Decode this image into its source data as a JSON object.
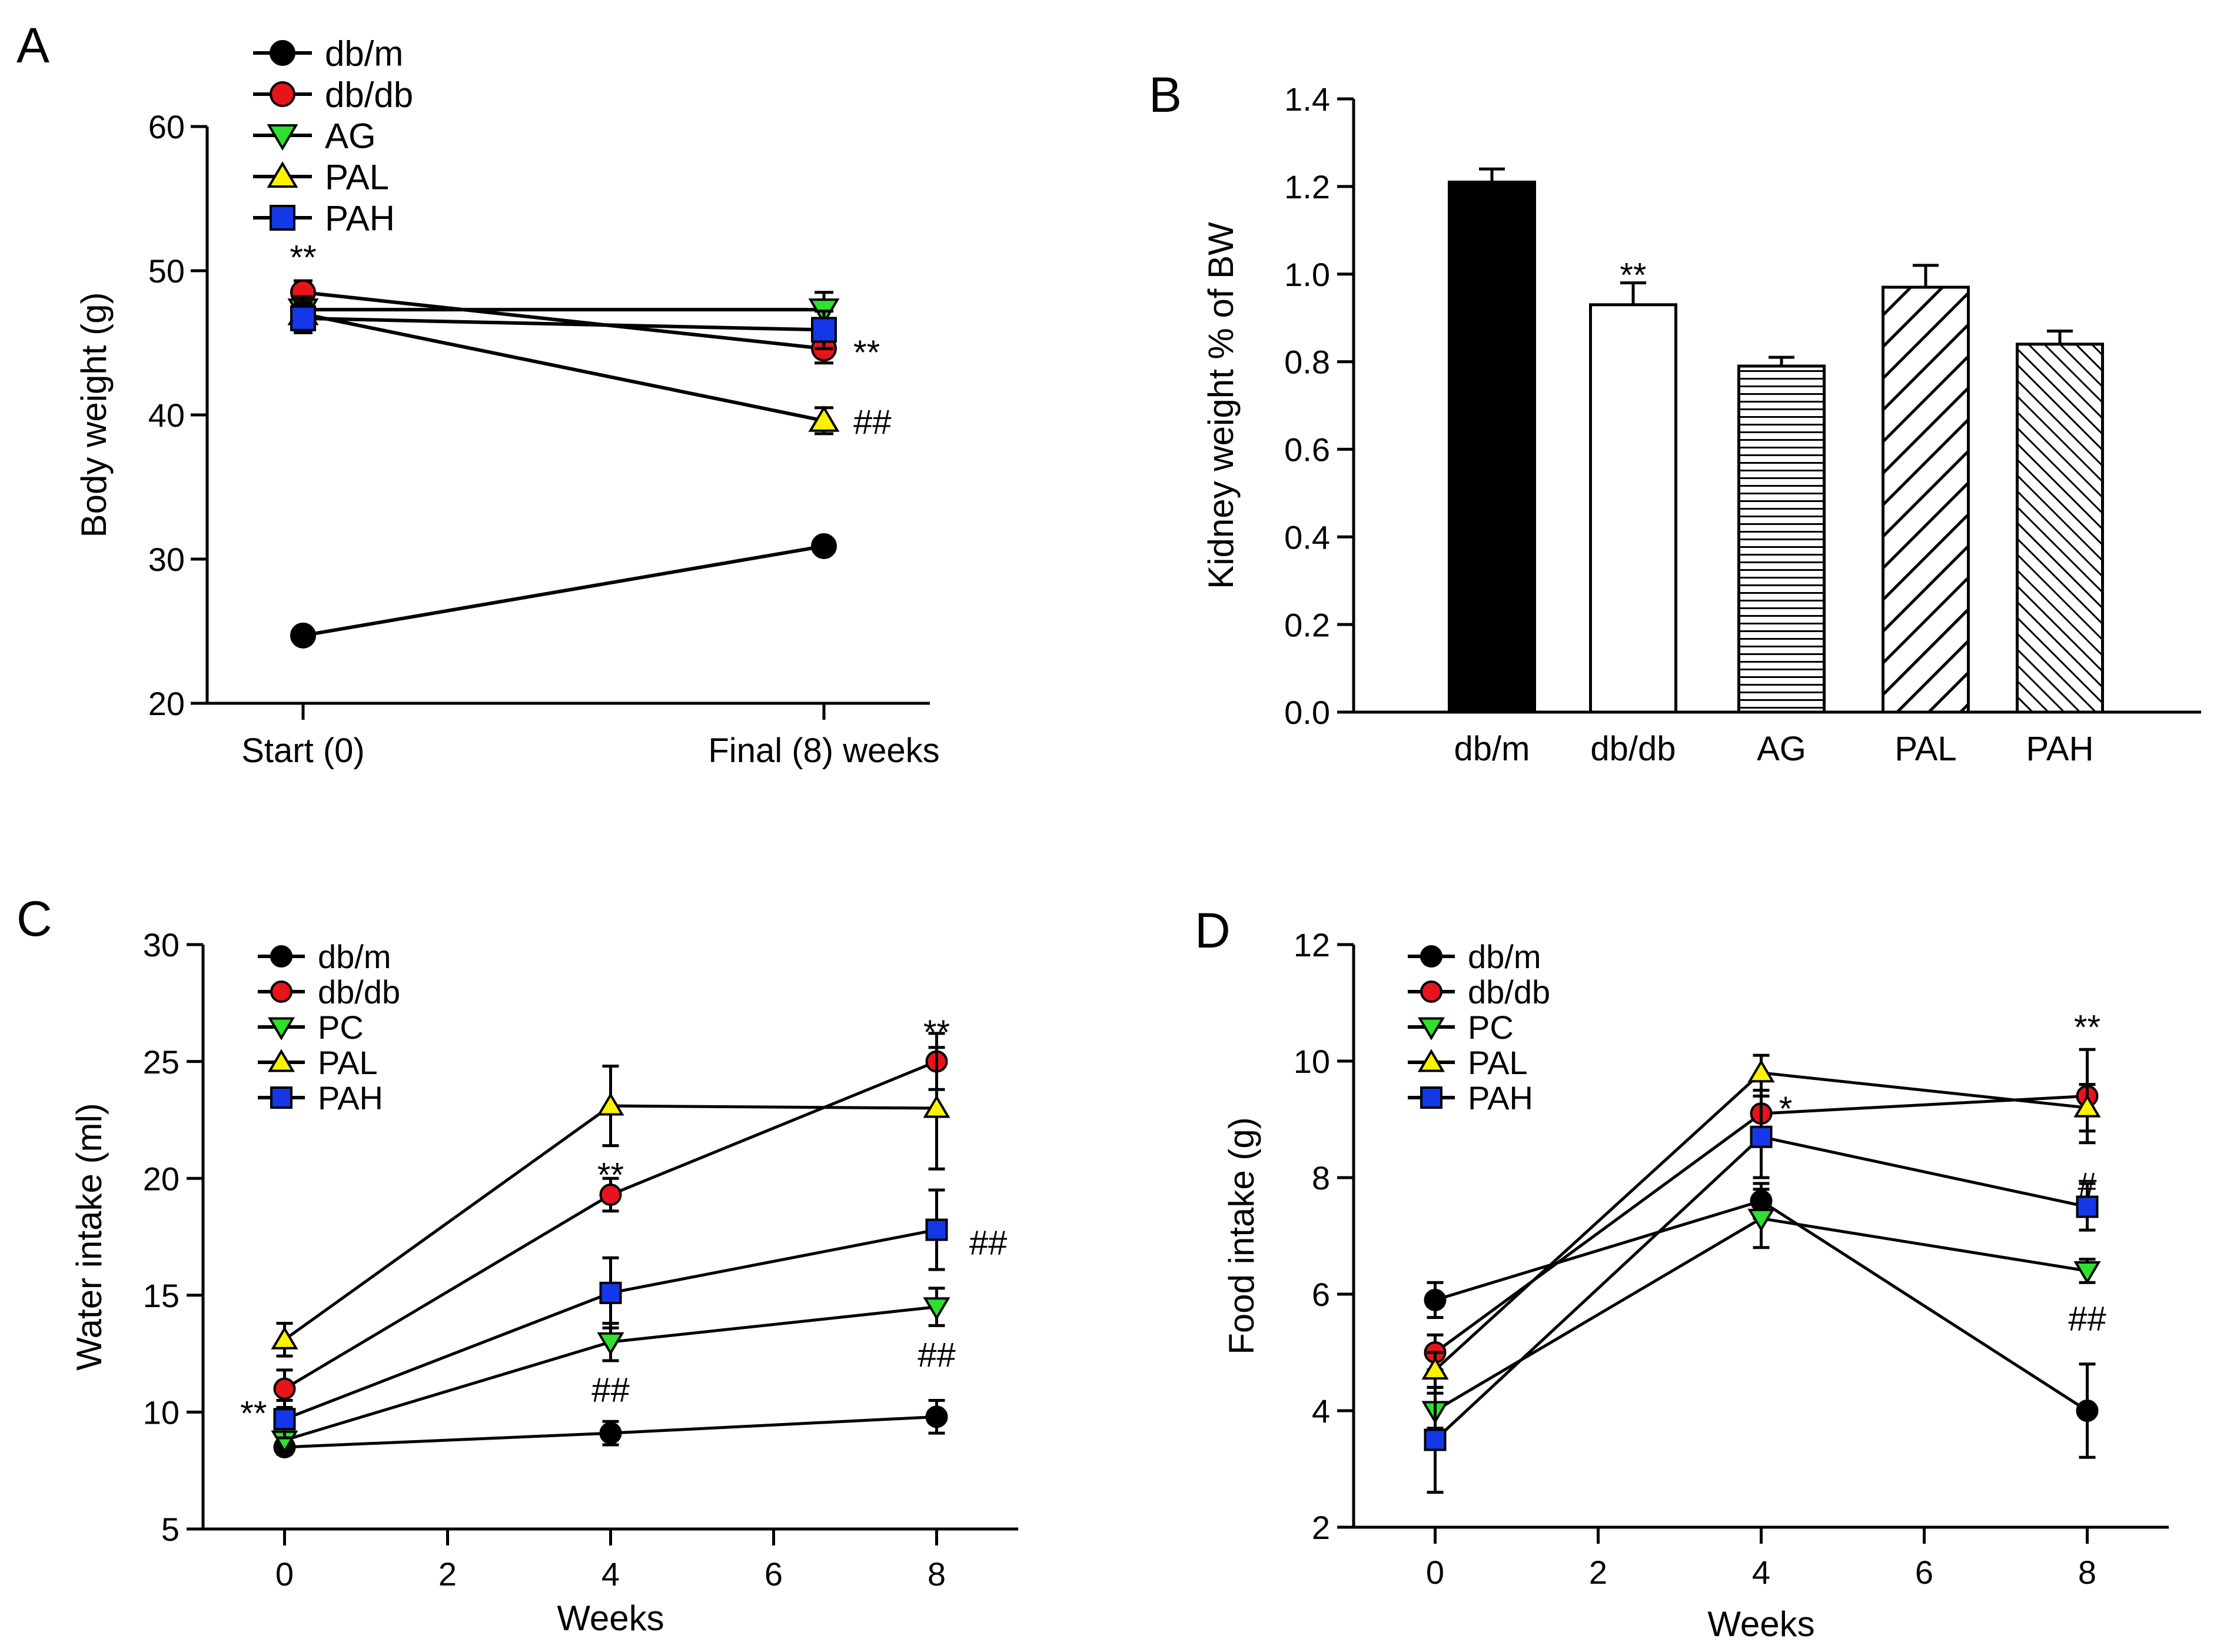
{
  "colors": {
    "axis": "#000000",
    "db_m": "#000000",
    "db_db": "#e8141b",
    "green": "#2fe02f",
    "yellow": "#fff200",
    "blue": "#1438e8",
    "bar_fill": "#000000",
    "bar_hollow": "#ffffff"
  },
  "chart_data": [
    {
      "panel": "A",
      "type": "line",
      "ylabel": "Body weight (g)",
      "xlabel": "",
      "categories": [
        "Start (0)",
        "Final (8) weeks"
      ],
      "ylim": [
        20,
        60
      ],
      "yticks": [
        20,
        30,
        40,
        50,
        60
      ],
      "legend_position": "top-left",
      "series": [
        {
          "name": "db/m",
          "marker": "circle",
          "color": "#000000",
          "values": [
            24.7,
            30.9
          ],
          "errors": [
            0.4,
            0.5
          ]
        },
        {
          "name": "db/db",
          "marker": "circle",
          "color": "#e8141b",
          "values": [
            48.5,
            44.6
          ],
          "errors": [
            0.8,
            1.0
          ]
        },
        {
          "name": "AG",
          "marker": "triangle-down",
          "color": "#2fe02f",
          "values": [
            47.3,
            47.3
          ],
          "errors": [
            0.9,
            1.2
          ]
        },
        {
          "name": "PAL",
          "marker": "triangle-up",
          "color": "#fff200",
          "values": [
            47.0,
            39.6
          ],
          "errors": [
            0.8,
            0.9
          ]
        },
        {
          "name": "PAH",
          "marker": "square",
          "color": "#1438e8",
          "values": [
            46.7,
            45.9
          ],
          "errors": [
            1.0,
            1.3
          ]
        }
      ],
      "annotations": [
        {
          "text": "**",
          "x": 0,
          "y": 51.0,
          "anchor": "middle"
        },
        {
          "text": "**",
          "x": 1,
          "y": 44.4,
          "anchor": "start"
        },
        {
          "text": "##",
          "x": 1,
          "y": 39.6,
          "anchor": "start"
        }
      ]
    },
    {
      "panel": "B",
      "type": "bar",
      "ylabel": "Kidney weight % of BW",
      "xlabel": "",
      "categories": [
        "db/m",
        "db/db",
        "AG",
        "PAL",
        "PAH"
      ],
      "values": [
        1.21,
        0.93,
        0.79,
        0.97,
        0.84
      ],
      "errors": [
        0.03,
        0.05,
        0.02,
        0.05,
        0.03
      ],
      "patterns": [
        "solid",
        "empty",
        "horizontal",
        "diagonal-wide",
        "diagonal-dense"
      ],
      "ylim": [
        0.0,
        1.4
      ],
      "yticks": [
        "0.0",
        "0.2",
        "0.4",
        "0.6",
        "0.8",
        "1.0",
        "1.2",
        "1.4"
      ],
      "annotations": [
        {
          "text": "**",
          "x": 1,
          "y": 1.0
        }
      ]
    },
    {
      "panel": "C",
      "type": "line",
      "ylabel": "Water intake (ml)",
      "xlabel": "Weeks",
      "x": [
        0,
        4,
        8
      ],
      "xlim": [
        -1,
        9
      ],
      "xticks": [
        0,
        2,
        4,
        6,
        8
      ],
      "ylim": [
        5,
        30
      ],
      "yticks": [
        5,
        10,
        15,
        20,
        25,
        30
      ],
      "legend_position": "top-left",
      "series": [
        {
          "name": "db/m",
          "marker": "circle",
          "color": "#000000",
          "values": [
            8.5,
            9.1,
            9.8
          ],
          "errors": [
            0.3,
            0.5,
            0.7
          ]
        },
        {
          "name": "db/db",
          "marker": "circle",
          "color": "#e8141b",
          "values": [
            11.0,
            19.3,
            25.0
          ],
          "errors": [
            0.8,
            0.7,
            1.2
          ]
        },
        {
          "name": "PC",
          "marker": "triangle-down",
          "color": "#2fe02f",
          "values": [
            8.8,
            13.0,
            14.5
          ],
          "errors": [
            0.5,
            0.8,
            0.8
          ]
        },
        {
          "name": "PAL",
          "marker": "triangle-up",
          "color": "#fff200",
          "values": [
            13.1,
            23.1,
            23.0
          ],
          "errors": [
            0.7,
            1.7,
            2.6
          ]
        },
        {
          "name": "PAH",
          "marker": "square",
          "color": "#1438e8",
          "values": [
            9.7,
            15.1,
            17.8
          ],
          "errors": [
            0.8,
            1.5,
            1.7
          ]
        }
      ],
      "annotations": [
        {
          "text": "**",
          "x": -0.38,
          "y": 10.0,
          "anchor": "middle"
        },
        {
          "text": "**",
          "x": 4,
          "y": 20.2,
          "anchor": "middle"
        },
        {
          "text": "##",
          "x": 4,
          "y": 11.0,
          "anchor": "middle"
        },
        {
          "text": "**",
          "x": 8,
          "y": 26.3,
          "anchor": "middle"
        },
        {
          "text": "##",
          "x": 8.4,
          "y": 17.3,
          "anchor": "start"
        },
        {
          "text": "##",
          "x": 8,
          "y": 12.5,
          "anchor": "middle"
        }
      ]
    },
    {
      "panel": "D",
      "type": "line",
      "ylabel": "Food intake (g)",
      "xlabel": "Weeks",
      "x": [
        0,
        4,
        8
      ],
      "xlim": [
        -1,
        9
      ],
      "xticks": [
        0,
        2,
        4,
        6,
        8
      ],
      "ylim": [
        2,
        12
      ],
      "yticks": [
        2,
        4,
        6,
        8,
        10,
        12
      ],
      "legend_position": "top-left",
      "series": [
        {
          "name": "db/m",
          "marker": "circle",
          "color": "#000000",
          "values": [
            5.9,
            7.6,
            4.0
          ],
          "errors": [
            0.3,
            0.3,
            0.8
          ]
        },
        {
          "name": "db/db",
          "marker": "circle",
          "color": "#e8141b",
          "values": [
            5.0,
            9.1,
            9.4
          ],
          "errors": [
            0.3,
            0.4,
            0.8
          ]
        },
        {
          "name": "PC",
          "marker": "triangle-down",
          "color": "#2fe02f",
          "values": [
            4.0,
            7.3,
            6.4
          ],
          "errors": [
            0.3,
            0.5,
            0.2
          ]
        },
        {
          "name": "PAL",
          "marker": "triangle-up",
          "color": "#fff200",
          "values": [
            4.7,
            9.8,
            9.2
          ],
          "errors": [
            0.3,
            0.3,
            0.4
          ]
        },
        {
          "name": "PAH",
          "marker": "square",
          "color": "#1438e8",
          "values": [
            3.5,
            8.7,
            7.5
          ],
          "errors": [
            0.9,
            0.7,
            0.4
          ]
        }
      ],
      "annotations": [
        {
          "text": "*",
          "x": 4.3,
          "y": 9.2,
          "anchor": "middle"
        },
        {
          "text": "**",
          "x": 8,
          "y": 10.6,
          "anchor": "middle"
        },
        {
          "text": "#",
          "x": 8,
          "y": 7.9,
          "anchor": "middle"
        },
        {
          "text": "##",
          "x": 8,
          "y": 5.6,
          "anchor": "middle"
        }
      ]
    }
  ]
}
